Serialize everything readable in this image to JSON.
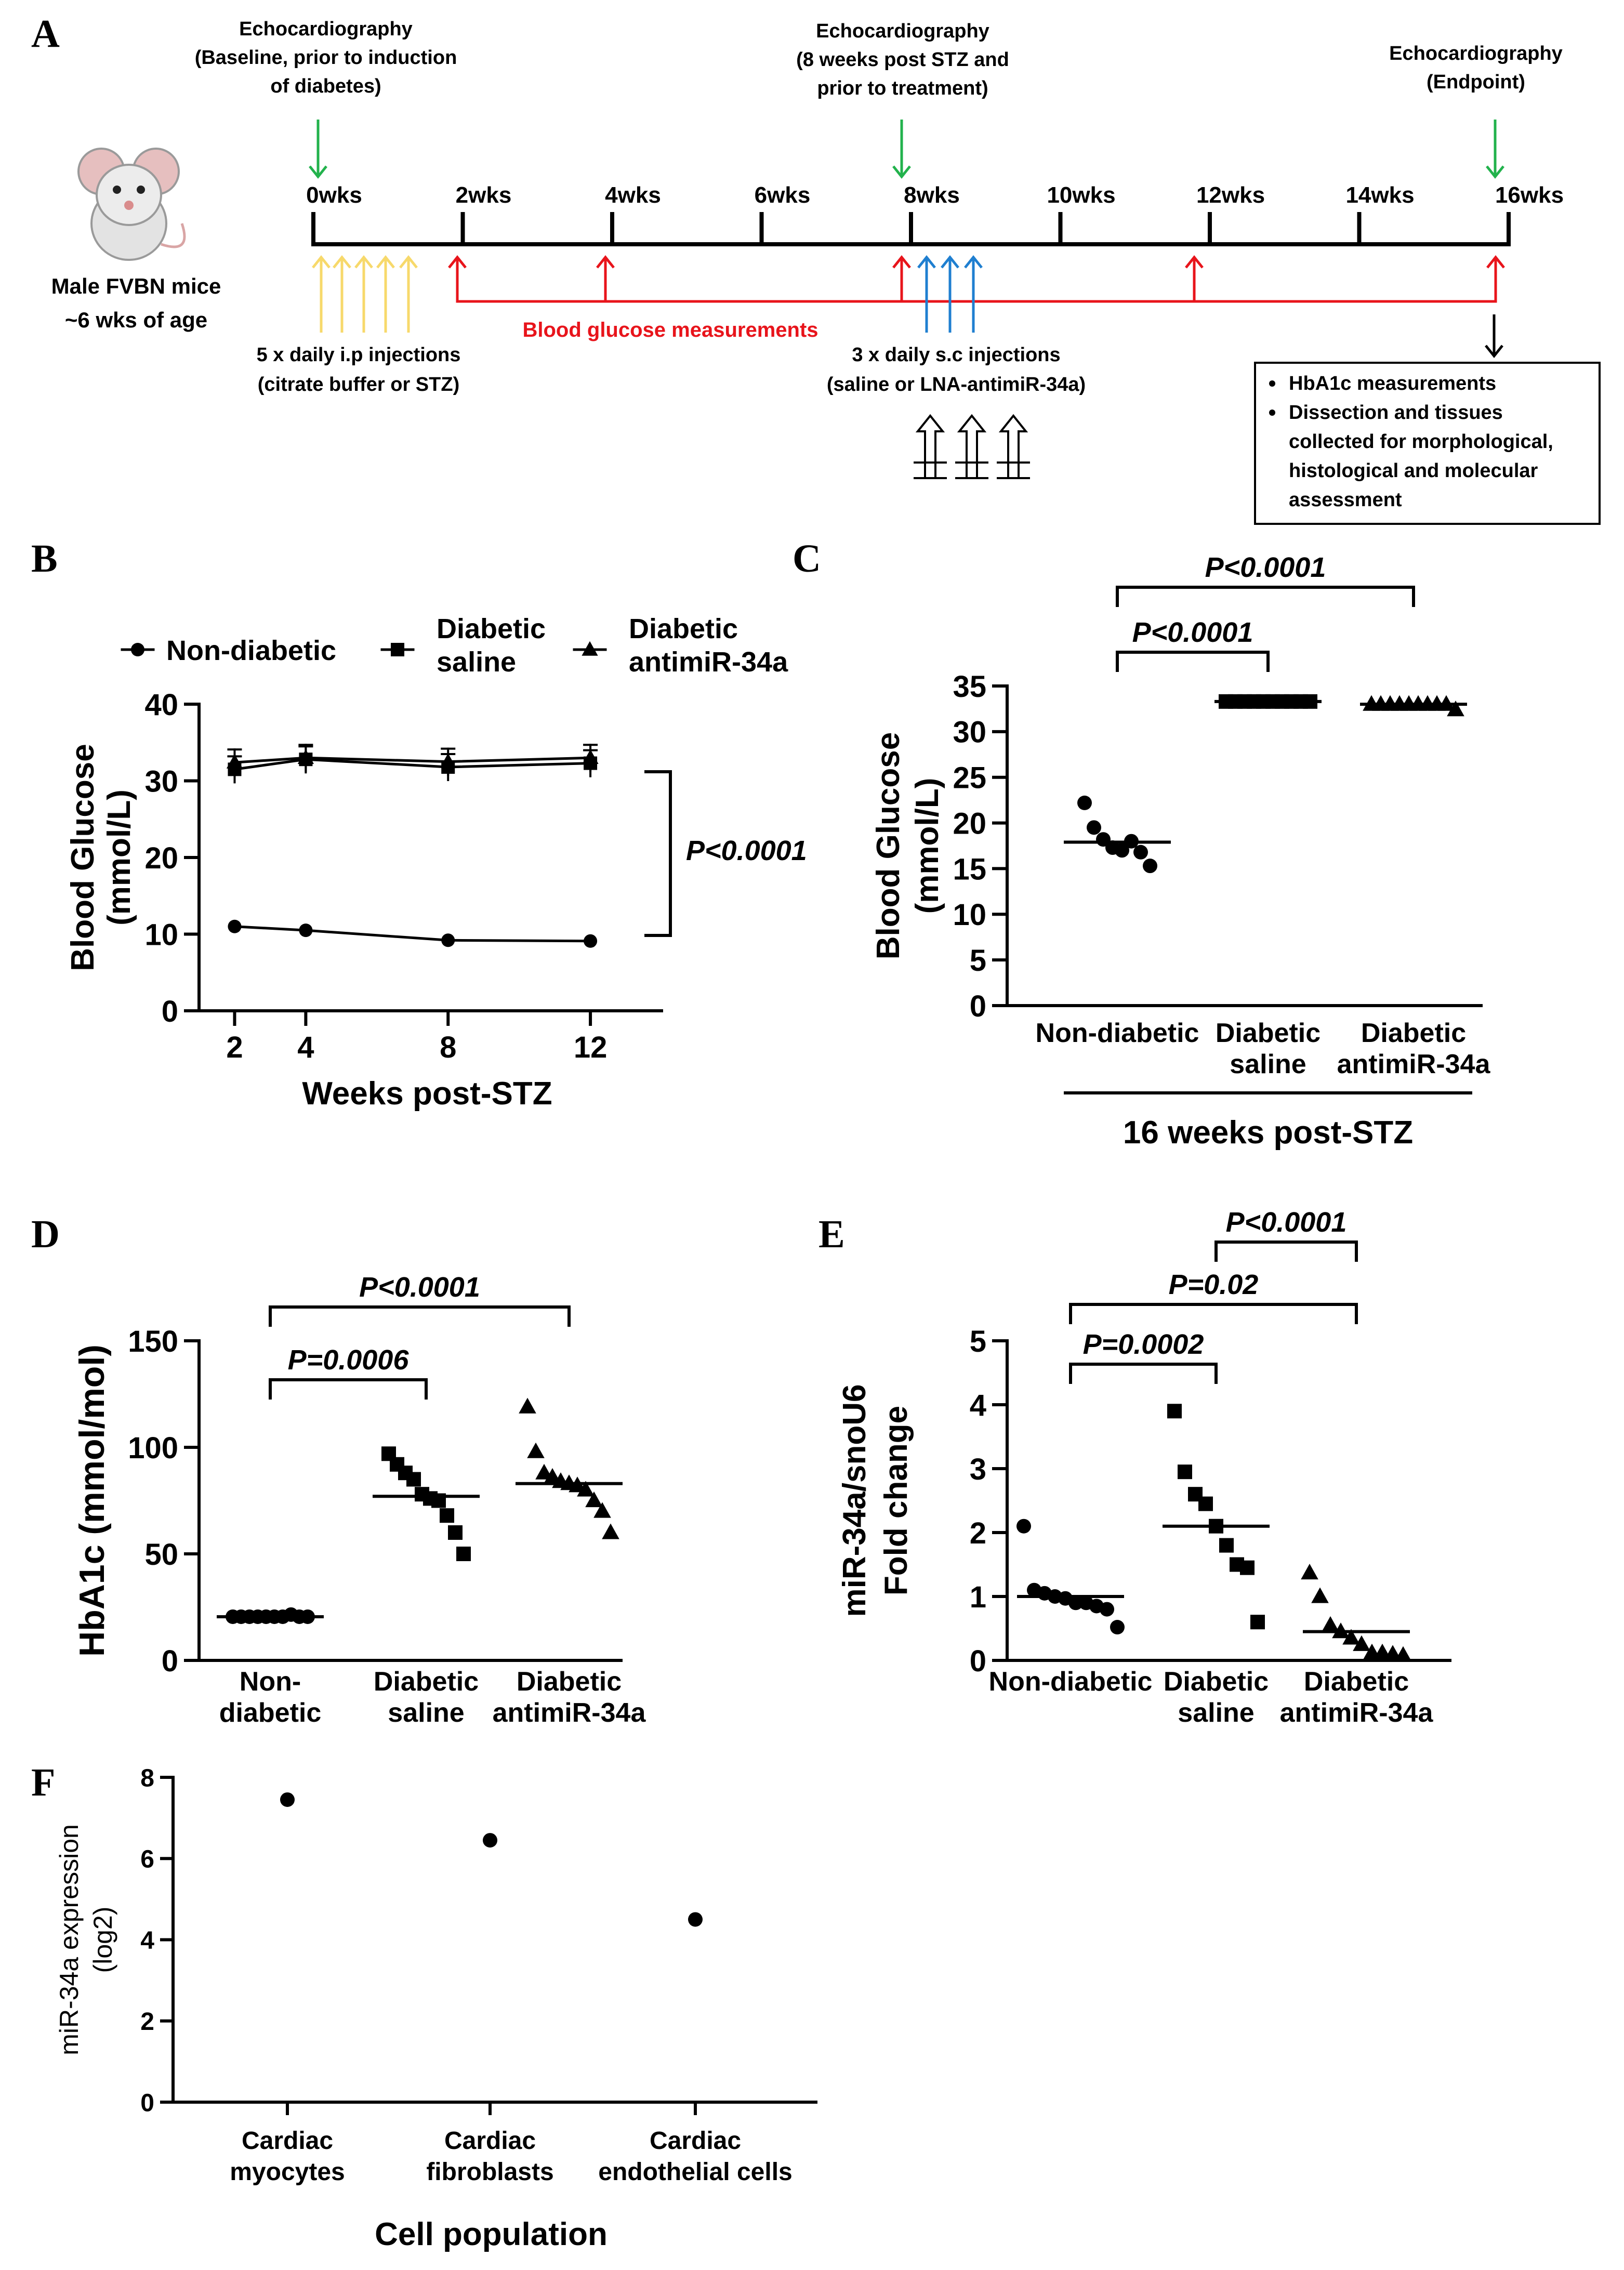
{
  "colors": {
    "ink": "#000000",
    "echo_arrow": "#22b24c",
    "ip_arrow": "#f7d96b",
    "glucose_arrow": "#e8141b",
    "sc_arrow": "#1f7fd0",
    "glucose_label": "#e8141b"
  },
  "panels": {
    "a": "A",
    "b": "B",
    "c": "C",
    "d": "D",
    "e": "E",
    "f": "F"
  },
  "timeline": {
    "mouse_label_1": "Male FVBN mice",
    "mouse_label_2": "~6 wks of age",
    "weeks": [
      "0wks",
      "2wks",
      "4wks",
      "6wks",
      "8wks",
      "10wks",
      "12wks",
      "14wks",
      "16wks"
    ],
    "echo_baseline": [
      "Echocardiography",
      "(Baseline, prior to induction",
      "of diabetes)"
    ],
    "echo_8wk": [
      "Echocardiography",
      "(8 weeks post STZ and",
      "prior to treatment)"
    ],
    "echo_end": [
      "Echocardiography",
      "(Endpoint)"
    ],
    "glucose_label": "Blood glucose measurements",
    "ip_label": [
      "5 x daily i.p injections",
      "(citrate buffer or STZ)"
    ],
    "sc_label": [
      "3 x daily s.c injections",
      "(saline or LNA-antimiR-34a)"
    ],
    "endpoint_box": [
      "HbA1c measurements",
      "Dissection and tissues",
      "collected for morphological,",
      "histological and molecular",
      "assessment"
    ]
  },
  "chart_data": [
    {
      "id": "B",
      "type": "line",
      "ylabel": [
        "Blood Glucose",
        "(mmol/L)"
      ],
      "xlabel": "Weeks post-STZ",
      "x": [
        2,
        4,
        8,
        12
      ],
      "xticks": [
        "2",
        "4",
        "8",
        "12"
      ],
      "xlim": [
        1,
        14
      ],
      "ylim": [
        0,
        40
      ],
      "yticks": [
        "0",
        "10",
        "20",
        "30",
        "40"
      ],
      "series": [
        {
          "name": "Non-diabetic",
          "marker": "circle",
          "values": [
            11,
            10.5,
            9.2,
            9.1
          ]
        },
        {
          "name": "Diabetic saline",
          "marker": "square",
          "values": [
            31.5,
            32.8,
            31.8,
            32.3
          ]
        },
        {
          "name": "Diabetic antimiR-34a",
          "marker": "triangle",
          "values": [
            32.4,
            33.0,
            32.5,
            33.0
          ]
        }
      ],
      "legend": [
        {
          "lines": [
            "Non-diabetic"
          ],
          "marker": "circle"
        },
        {
          "lines": [
            "Diabetic",
            "saline"
          ],
          "marker": "square"
        },
        {
          "lines": [
            "Diabetic",
            "antimiR-34a"
          ],
          "marker": "triangle"
        }
      ],
      "annotation": "P<0.0001"
    },
    {
      "id": "C",
      "type": "scatter",
      "ylabel": [
        "Blood Glucose",
        "(mmol/L)"
      ],
      "categories": [
        [
          "Non-diabetic"
        ],
        [
          "Diabetic",
          "saline"
        ],
        [
          "Diabetic",
          "antimiR-34a"
        ]
      ],
      "group_label": "16 weeks post-STZ",
      "ylim": [
        0,
        35
      ],
      "yticks": [
        "0",
        "5",
        "10",
        "15",
        "20",
        "25",
        "30",
        "35"
      ],
      "groups": [
        {
          "marker": "circle",
          "mean": 17.9,
          "values": [
            22.2,
            19.5,
            18.2,
            17.3,
            17.0,
            18.0,
            16.8,
            15.3
          ]
        },
        {
          "marker": "square",
          "mean": 33.3,
          "values": [
            33.3,
            33.3,
            33.3,
            33.3,
            33.3,
            33.3,
            33.3,
            33.3,
            33.3,
            33.3
          ]
        },
        {
          "marker": "triangle",
          "mean": 33.0,
          "values": [
            33.0,
            33.0,
            33.0,
            33.0,
            33.0,
            33.0,
            33.0,
            33.0,
            33.0,
            32.4
          ]
        }
      ],
      "comparisons": [
        {
          "from": 0,
          "to": 1,
          "text": "P<0.0001",
          "level": 0
        },
        {
          "from": 0,
          "to": 2,
          "text": "P<0.0001",
          "level": 1
        }
      ]
    },
    {
      "id": "D",
      "type": "scatter",
      "ylabel": [
        "HbA1c (mmol/mol)"
      ],
      "categories": [
        [
          "Non-",
          "diabetic"
        ],
        [
          "Diabetic",
          "saline"
        ],
        [
          "Diabetic",
          "antimiR-34a"
        ]
      ],
      "ylim": [
        0,
        150
      ],
      "yticks": [
        "0",
        "50",
        "100",
        "150"
      ],
      "groups": [
        {
          "marker": "circle",
          "mean": 20.5,
          "values": [
            20.5,
            20.5,
            20.5,
            20.5,
            20.5,
            20.5,
            20.5,
            21.5,
            20.5,
            20.5
          ]
        },
        {
          "marker": "square",
          "mean": 77,
          "values": [
            97,
            92,
            88,
            85,
            78,
            76,
            75,
            68,
            60,
            50
          ]
        },
        {
          "marker": "triangle",
          "mean": 83,
          "values": [
            119,
            98,
            88,
            86,
            84,
            83,
            82,
            80,
            75,
            70,
            60
          ]
        }
      ],
      "comparisons": [
        {
          "from": 0,
          "to": 1,
          "text": "P=0.0006",
          "level": 0
        },
        {
          "from": 0,
          "to": 2,
          "text": "P<0.0001",
          "level": 1
        }
      ]
    },
    {
      "id": "E",
      "type": "scatter",
      "ylabel": [
        "miR-34a/snoU6",
        "Fold change"
      ],
      "categories": [
        [
          "Non-diabetic"
        ],
        [
          "Diabetic",
          "saline"
        ],
        [
          "Diabetic",
          "antimiR-34a"
        ]
      ],
      "ylim": [
        0,
        5
      ],
      "yticks": [
        "0",
        "1",
        "2",
        "3",
        "4",
        "5"
      ],
      "groups": [
        {
          "marker": "circle",
          "mean": 1.0,
          "values": [
            2.1,
            1.1,
            1.05,
            1.0,
            0.97,
            0.9,
            0.9,
            0.85,
            0.8,
            0.52
          ]
        },
        {
          "marker": "square",
          "mean": 2.1,
          "values": [
            3.9,
            2.95,
            2.6,
            2.45,
            2.1,
            1.8,
            1.5,
            1.45,
            0.6
          ]
        },
        {
          "marker": "triangle",
          "mean": 0.45,
          "values": [
            1.37,
            1.0,
            0.55,
            0.45,
            0.35,
            0.25,
            0.12,
            0.12,
            0.1,
            0.08
          ]
        }
      ],
      "comparisons": [
        {
          "from": 0,
          "to": 1,
          "text": "P=0.0002",
          "level": 0
        },
        {
          "from": 0,
          "to": 2,
          "text": "P=0.02",
          "level": 1
        },
        {
          "from": 1,
          "to": 2,
          "text": "P<0.0001",
          "level": 2
        }
      ]
    },
    {
      "id": "F",
      "type": "scatter",
      "ylabel": [
        "miR-34a expression",
        "(log2)"
      ],
      "xlabel": "Cell population",
      "categories": [
        [
          "Cardiac",
          "myocytes"
        ],
        [
          "Cardiac",
          "fibroblasts"
        ],
        [
          "Cardiac",
          "endothelial cells"
        ]
      ],
      "ylim": [
        0,
        8
      ],
      "yticks": [
        "0",
        "2",
        "4",
        "6",
        "8"
      ],
      "values": [
        7.45,
        6.45,
        4.5
      ]
    }
  ]
}
